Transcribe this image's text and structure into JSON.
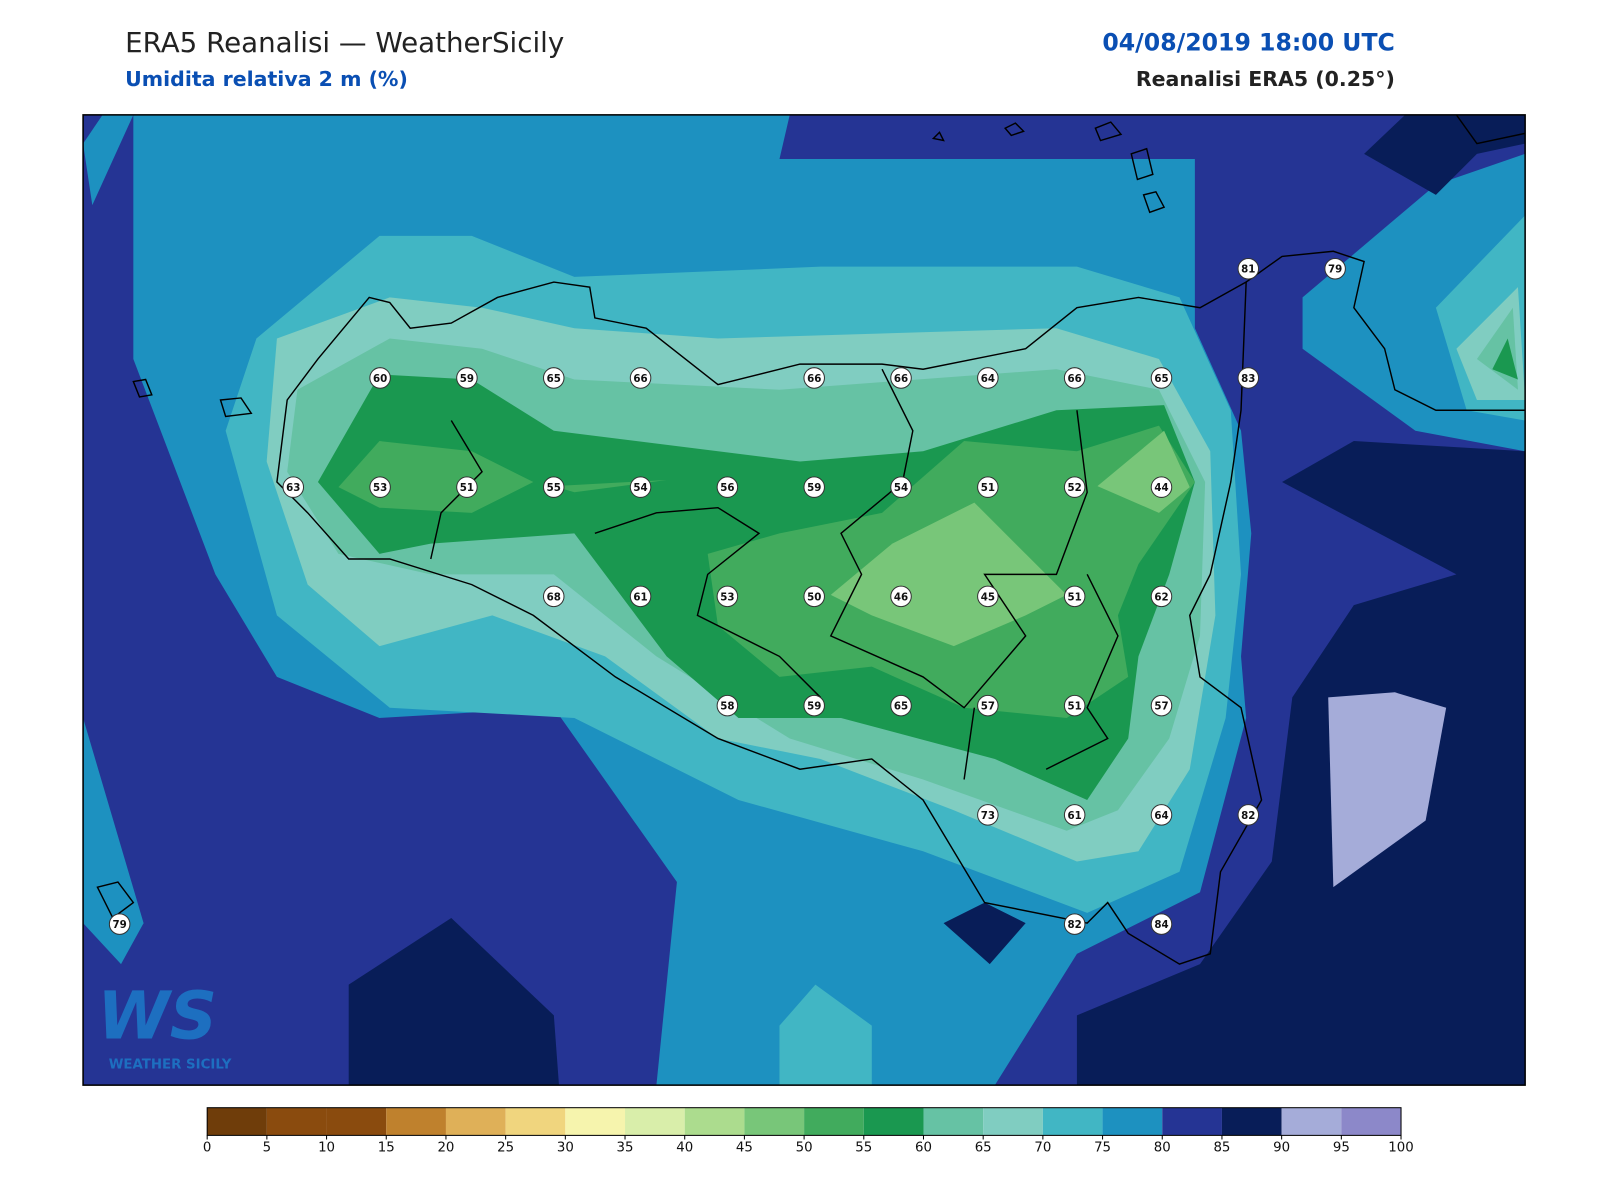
{
  "header": {
    "title": "ERA5 Reanalisi — WeatherSicily",
    "subtitle": "Umidita relativa 2 m (%)",
    "datetime": "04/08/2019 18:00 UTC",
    "source": "Reanalisi ERA5 (0.25°)"
  },
  "map": {
    "values": [
      81,
      79,
      60,
      59,
      65,
      66,
      66,
      66,
      64,
      66,
      65,
      83,
      63,
      53,
      51,
      55,
      54,
      56,
      59,
      54,
      51,
      52,
      44,
      68,
      61,
      53,
      50,
      46,
      45,
      51,
      62,
      58,
      59,
      65,
      57,
      51,
      57,
      73,
      61,
      64,
      82,
      82,
      84,
      79
    ]
  },
  "colorbar": {
    "bounds": [
      0,
      5,
      10,
      15,
      20,
      25,
      30,
      35,
      40,
      45,
      50,
      55,
      60,
      65,
      70,
      75,
      80,
      85,
      90,
      95,
      100
    ],
    "colors": [
      "#6f3d0a",
      "#8a4b0e",
      "#8a4b0e",
      "#bf812d",
      "#dfb058",
      "#f0d57e",
      "#f6f4ad",
      "#d9eeaa",
      "#acdc8e",
      "#78c679",
      "#41ab5d",
      "#1a9850",
      "#66c2a4",
      "#80cdc1",
      "#41b6c4",
      "#1d91c0",
      "#253494",
      "#081d58",
      "#a5acd9",
      "#8c88c9"
    ]
  },
  "logo": {
    "mark": "WS",
    "text": "WEATHER SICILY"
  }
}
